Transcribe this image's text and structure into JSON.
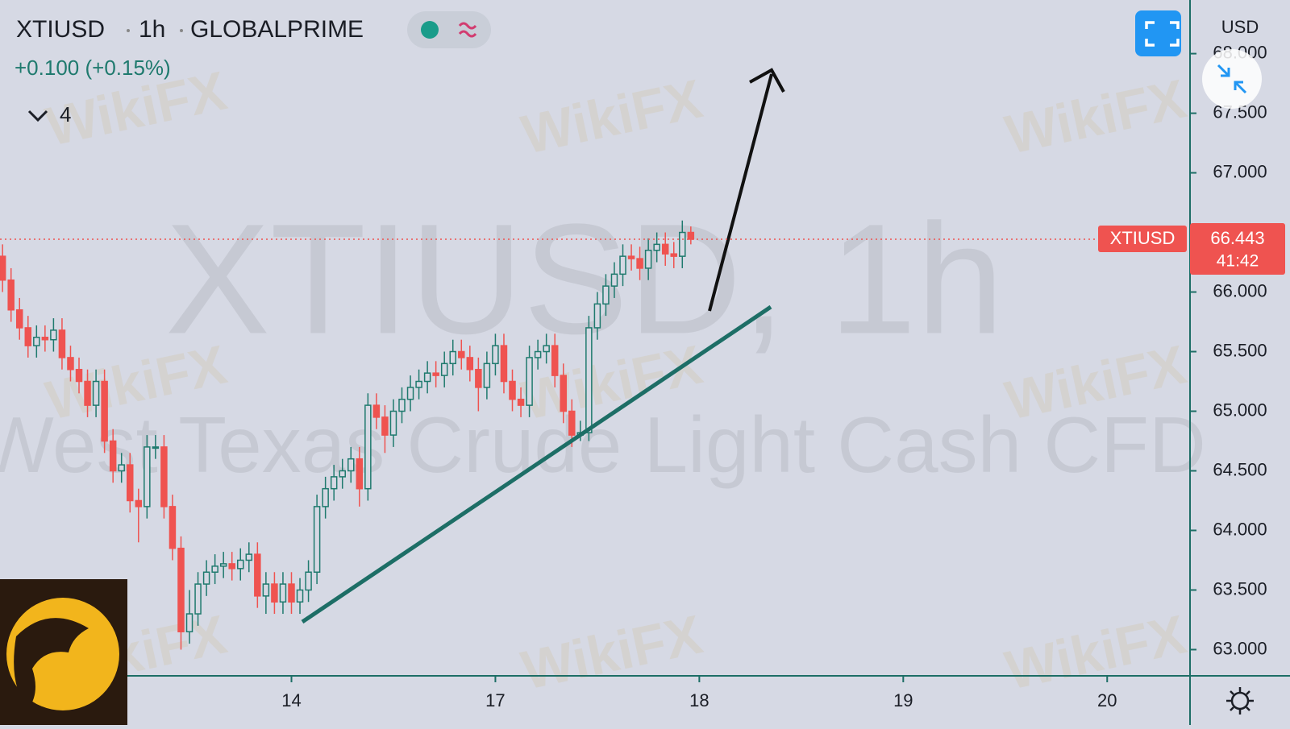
{
  "header": {
    "symbol": "XTIUSD",
    "interval": "1h",
    "broker": "GLOBALPRIME",
    "change": "+0.100 (+0.15%)",
    "indicator_count": "4"
  },
  "watermark": {
    "brand": "WikiFX",
    "main": "XTIUSD, 1h",
    "description": "West Texas Crude Light Cash CFD"
  },
  "chart_data": {
    "type": "candlestick",
    "currency": "USD",
    "up_color": "#1f7a6e",
    "down_color": "#ef5350",
    "last_label": "XTIUSD",
    "last_price": 66.443,
    "countdown": "41:42",
    "ylim": [
      62.78,
      68.45
    ],
    "yticks": [
      {
        "value": 63,
        "label": "63.000"
      },
      {
        "value": 63.5,
        "label": "63.500"
      },
      {
        "value": 64,
        "label": "64.000"
      },
      {
        "value": 64.5,
        "label": "64.500"
      },
      {
        "value": 65,
        "label": "65.000"
      },
      {
        "value": 65.5,
        "label": "65.500"
      },
      {
        "value": 66,
        "label": "66.000"
      },
      {
        "value": 66.5,
        "label": "66.500"
      },
      {
        "value": 67,
        "label": "67.000"
      },
      {
        "value": 67.5,
        "label": "67.500"
      },
      {
        "value": 68,
        "label": "68.000"
      }
    ],
    "xlim": [
      -0.3,
      139.75
    ],
    "xticks": [
      {
        "value": 34,
        "label": "14"
      },
      {
        "value": 58,
        "label": "17"
      },
      {
        "value": 82,
        "label": "18"
      },
      {
        "value": 106,
        "label": "19"
      },
      {
        "value": 130,
        "label": "20"
      }
    ],
    "open": [
      66.3,
      66.1,
      65.85,
      65.7,
      65.55,
      65.62,
      65.6,
      65.68,
      65.45,
      65.35,
      65.25,
      65.05,
      65.25,
      64.75,
      64.5,
      64.55,
      64.25,
      64.2,
      64.7,
      64.7,
      64.2,
      63.85,
      63.15,
      63.3,
      63.55,
      63.65,
      63.7,
      63.72,
      63.68,
      63.75,
      63.8,
      63.45,
      63.55,
      63.4,
      63.55,
      63.4,
      63.5,
      63.65,
      64.2,
      64.35,
      64.45,
      64.5,
      64.6,
      64.35,
      65.05,
      64.95,
      64.8,
      65.0,
      65.1,
      65.2,
      65.25,
      65.32,
      65.3,
      65.4,
      65.5,
      65.45,
      65.35,
      65.2,
      65.4,
      65.55,
      65.25,
      65.1,
      65.05,
      65.45,
      65.5,
      65.55,
      65.3,
      65.0,
      64.8,
      64.82,
      65.7,
      65.9,
      66.05,
      66.15,
      66.3,
      66.28,
      66.2,
      66.35,
      66.4,
      66.32,
      66.3,
      66.5
    ],
    "high": [
      66.4,
      66.2,
      65.95,
      65.8,
      65.72,
      65.72,
      65.78,
      65.78,
      65.55,
      65.45,
      65.35,
      65.35,
      65.35,
      64.85,
      64.65,
      64.65,
      64.35,
      64.8,
      64.8,
      64.8,
      64.3,
      63.95,
      63.5,
      63.65,
      63.75,
      63.8,
      63.82,
      63.82,
      63.85,
      63.9,
      63.9,
      63.65,
      63.65,
      63.65,
      63.65,
      63.6,
      63.75,
      64.3,
      64.45,
      64.55,
      64.6,
      64.7,
      64.7,
      65.15,
      65.15,
      65.05,
      65.1,
      65.2,
      65.3,
      65.35,
      65.42,
      65.42,
      65.5,
      65.6,
      65.6,
      65.55,
      65.45,
      65.5,
      65.65,
      65.65,
      65.35,
      65.2,
      65.55,
      65.6,
      65.65,
      65.65,
      65.4,
      65.1,
      64.92,
      65.8,
      66.0,
      66.15,
      66.25,
      66.4,
      66.4,
      66.38,
      66.45,
      66.5,
      66.5,
      66.42,
      66.6,
      66.55
    ],
    "low": [
      66.0,
      65.75,
      65.6,
      65.45,
      65.45,
      65.5,
      65.5,
      65.35,
      65.25,
      65.15,
      64.95,
      64.95,
      64.65,
      64.4,
      64.4,
      64.15,
      63.9,
      64.1,
      64.6,
      64.1,
      63.75,
      63.0,
      63.05,
      63.2,
      63.45,
      63.55,
      63.6,
      63.58,
      63.58,
      63.65,
      63.35,
      63.3,
      63.3,
      63.3,
      63.3,
      63.3,
      63.4,
      63.55,
      64.1,
      64.25,
      64.35,
      64.4,
      64.2,
      64.25,
      64.85,
      64.65,
      64.7,
      64.9,
      65.0,
      65.1,
      65.15,
      65.2,
      65.2,
      65.3,
      65.35,
      65.25,
      65.0,
      65.1,
      65.3,
      65.15,
      65.0,
      64.95,
      64.95,
      65.35,
      65.4,
      65.2,
      64.9,
      64.7,
      64.75,
      64.75,
      65.6,
      65.8,
      65.95,
      66.05,
      66.18,
      66.1,
      66.1,
      66.25,
      66.22,
      66.2,
      66.2,
      66.4
    ],
    "close": [
      66.1,
      65.85,
      65.7,
      65.55,
      65.62,
      65.6,
      65.68,
      65.45,
      65.35,
      65.25,
      65.05,
      65.25,
      64.75,
      64.5,
      64.55,
      64.25,
      64.2,
      64.7,
      64.7,
      64.2,
      63.85,
      63.15,
      63.3,
      63.55,
      63.65,
      63.7,
      63.72,
      63.68,
      63.75,
      63.8,
      63.45,
      63.55,
      63.4,
      63.55,
      63.4,
      63.5,
      63.65,
      64.2,
      64.35,
      64.45,
      64.5,
      64.6,
      64.35,
      65.05,
      64.95,
      64.8,
      65.0,
      65.1,
      65.2,
      65.25,
      65.32,
      65.3,
      65.4,
      65.5,
      65.45,
      65.35,
      65.2,
      65.4,
      65.55,
      65.25,
      65.1,
      65.05,
      65.45,
      65.5,
      65.55,
      65.3,
      65.0,
      64.8,
      64.82,
      65.7,
      65.9,
      66.05,
      66.15,
      66.3,
      66.28,
      66.2,
      66.35,
      66.4,
      66.32,
      66.3,
      66.5,
      66.443
    ]
  }
}
